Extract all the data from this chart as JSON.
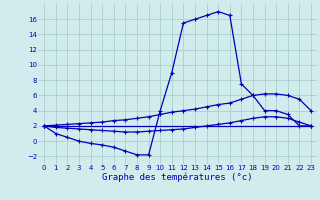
{
  "title": "Graphe des températures (°c)",
  "background_color": "#d0ecec",
  "grid_color": "#aacece",
  "line_color": "#0000bb",
  "xlim": [
    -0.5,
    23.5
  ],
  "ylim": [
    -3,
    18
  ],
  "xticks": [
    0,
    1,
    2,
    3,
    4,
    5,
    6,
    7,
    8,
    9,
    10,
    11,
    12,
    13,
    14,
    15,
    16,
    17,
    18,
    19,
    20,
    21,
    22,
    23
  ],
  "yticks": [
    -2,
    0,
    2,
    4,
    6,
    8,
    10,
    12,
    14,
    16
  ],
  "series": [
    {
      "x": [
        0,
        1,
        2,
        3,
        4,
        5,
        6,
        7,
        8,
        9,
        10,
        11,
        12,
        13,
        14,
        15,
        16,
        17,
        18,
        19,
        20,
        21,
        22,
        23
      ],
      "y": [
        2,
        1,
        0.5,
        0,
        -0.3,
        -0.5,
        -0.8,
        -1.3,
        -1.8,
        -1.8,
        4,
        9,
        15.5,
        16,
        16.5,
        17,
        16.5,
        7.5,
        6,
        4,
        4,
        3.5,
        2,
        2
      ]
    },
    {
      "x": [
        0,
        1,
        2,
        3,
        4,
        5,
        6,
        7,
        8,
        9,
        10,
        11,
        12,
        13,
        14,
        15,
        16,
        17,
        18,
        19,
        20,
        21,
        22,
        23
      ],
      "y": [
        2,
        2.1,
        2.2,
        2.3,
        2.4,
        2.5,
        2.7,
        2.8,
        3.0,
        3.2,
        3.5,
        3.8,
        4.0,
        4.2,
        4.5,
        4.8,
        5.0,
        5.5,
        6.0,
        6.2,
        6.2,
        6.0,
        5.5,
        4
      ]
    },
    {
      "x": [
        0,
        1,
        2,
        3,
        4,
        5,
        6,
        7,
        8,
        9,
        10,
        11,
        12,
        13,
        14,
        15,
        16,
        17,
        18,
        19,
        20,
        21,
        22,
        23
      ],
      "y": [
        2,
        1.8,
        1.7,
        1.6,
        1.5,
        1.4,
        1.3,
        1.2,
        1.2,
        1.3,
        1.4,
        1.5,
        1.6,
        1.8,
        2.0,
        2.2,
        2.4,
        2.7,
        3.0,
        3.2,
        3.2,
        3.0,
        2.5,
        2
      ]
    },
    {
      "x": [
        0,
        23
      ],
      "y": [
        2,
        2
      ]
    }
  ]
}
